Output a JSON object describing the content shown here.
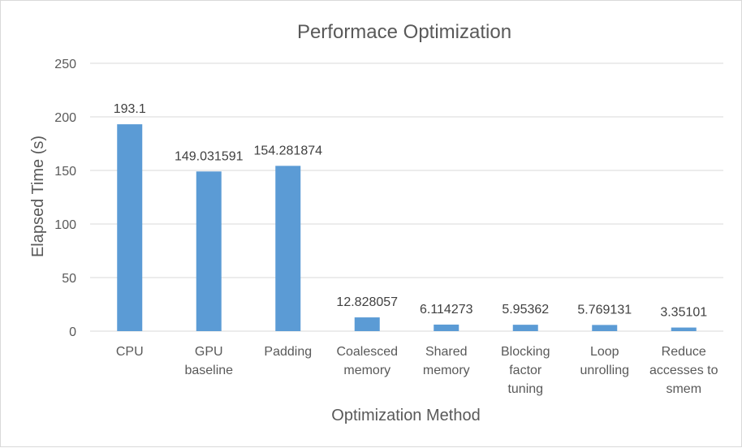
{
  "chart_data": {
    "type": "bar",
    "title": "Performace Optimization",
    "xlabel": "Optimization Method",
    "ylabel": "Elapsed Time (s)",
    "ylim": [
      0,
      250
    ],
    "yticks": [
      "0",
      "50",
      "100",
      "150",
      "200",
      "250"
    ],
    "grid": true,
    "legend": "none",
    "categories": [
      [
        "CPU"
      ],
      [
        "GPU",
        "baseline"
      ],
      [
        "Padding"
      ],
      [
        "Coalesced",
        "memory"
      ],
      [
        "Shared",
        "memory"
      ],
      [
        "Blocking",
        "factor",
        "tuning"
      ],
      [
        "Loop",
        "unrolling"
      ],
      [
        "Reduce",
        "accesses to",
        "smem"
      ]
    ],
    "values": [
      193.1,
      149.031591,
      154.281874,
      12.828057,
      6.114273,
      5.95362,
      5.769131,
      3.35101
    ],
    "data_labels": [
      "193.1",
      "149.031591",
      "154.281874",
      "12.828057",
      "6.114273",
      "5.95362",
      "5.769131",
      "3.35101"
    ],
    "bar_color": "#5b9bd5"
  }
}
